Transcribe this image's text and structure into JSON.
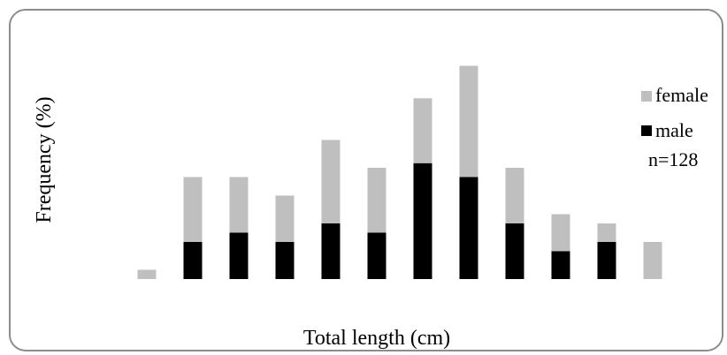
{
  "chart_data": {
    "type": "bar",
    "stacked": true,
    "title": "",
    "xlabel": "Total length (cm)",
    "ylabel": "Frequency (%)",
    "categories": [
      "",
      "",
      "",
      "",
      "",
      "",
      "",
      "",
      "",
      "",
      "",
      ""
    ],
    "series": [
      {
        "name": "male",
        "color": "#000000",
        "values": [
          0,
          4,
          5,
          4,
          6,
          5,
          12.5,
          11,
          6,
          3,
          4,
          0
        ]
      },
      {
        "name": "female",
        "color": "#bfbfbf",
        "values": [
          1,
          7,
          6,
          5,
          9,
          7,
          7,
          12,
          6,
          4,
          2,
          4
        ]
      }
    ],
    "ylim": [
      0,
      24
    ],
    "axes_visible": false,
    "grid": false,
    "legend_position": "right",
    "legend_order": [
      "female",
      "male"
    ],
    "annotation": "n=128"
  }
}
